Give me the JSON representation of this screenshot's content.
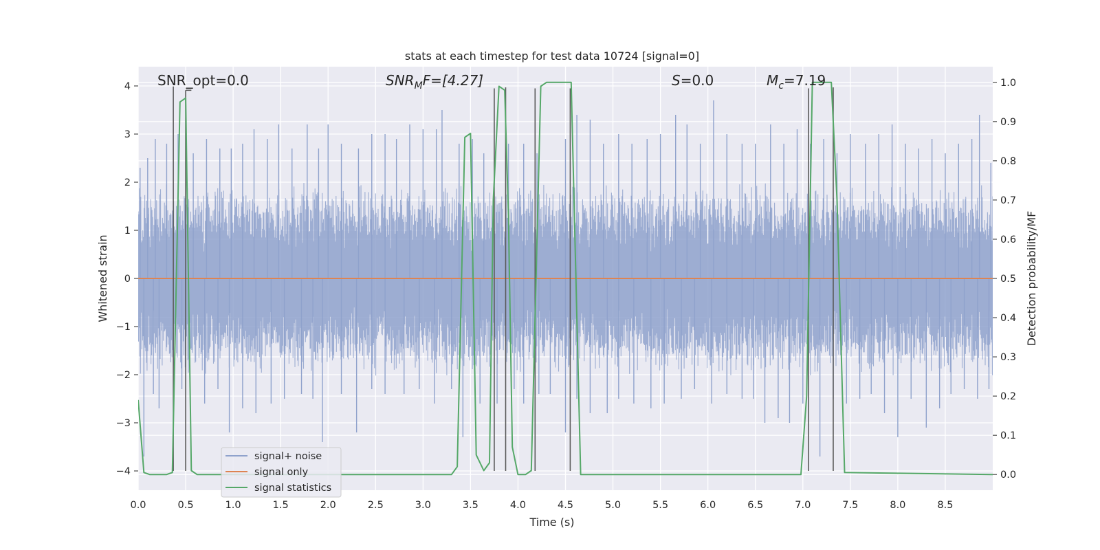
{
  "chart_data": {
    "type": "line",
    "title": "stats at each timestep for test data 10724 [signal=0]",
    "xlabel": "Time (s)",
    "ylabel_left": "Whitened strain",
    "ylabel_right": "Detection probability/MF",
    "xlim": [
      0.0,
      9.0
    ],
    "ylim_left": [
      -4.4,
      4.4
    ],
    "ylim_right": [
      -0.04,
      1.04
    ],
    "x_ticks": [
      "0.0",
      "0.5",
      "1.0",
      "1.5",
      "2.0",
      "2.5",
      "3.0",
      "3.5",
      "4.0",
      "4.5",
      "5.0",
      "5.5",
      "6.0",
      "6.5",
      "7.0",
      "7.5",
      "8.0",
      "8.5"
    ],
    "y_ticks_left": [
      "4",
      "3",
      "2",
      "1",
      "0",
      "−1",
      "−2",
      "−3",
      "−4"
    ],
    "y_ticks_right": [
      "1.0",
      "0.9",
      "0.8",
      "0.7",
      "0.6",
      "0.5",
      "0.4",
      "0.3",
      "0.2",
      "0.1",
      "0.0"
    ],
    "grid": true,
    "legend_position": "lower left",
    "annotations": {
      "snr_opt": "SNR_opt=0.0",
      "snr_mf_main": "SNR",
      "snr_mf_sub": "M",
      "snr_mf_rest": "F=[4.27]",
      "s_main": "S",
      "s_rest": "=0.0",
      "mc_main": "M",
      "mc_sub": "c",
      "mc_rest": "=7.19"
    },
    "series": [
      {
        "name": "signal+ noise",
        "color": "#8fa2cc",
        "note_levels": "dense noise, bulk envelope approx ±1.5, spikes up to ±3.8",
        "envelope_upper": 1.55,
        "envelope_lower": -1.6,
        "peaks": [
          {
            "x": 0.02,
            "y": 2.3
          },
          {
            "x": 0.1,
            "y": 2.5
          },
          {
            "x": 0.18,
            "y": 2.9
          },
          {
            "x": 0.3,
            "y": 2.8
          },
          {
            "x": 0.42,
            "y": 3.0
          },
          {
            "x": 0.58,
            "y": 2.6
          },
          {
            "x": 0.72,
            "y": 2.9
          },
          {
            "x": 0.86,
            "y": 2.7
          },
          {
            "x": 0.98,
            "y": 2.7
          },
          {
            "x": 1.1,
            "y": 2.8
          },
          {
            "x": 1.22,
            "y": 3.1
          },
          {
            "x": 1.36,
            "y": 2.9
          },
          {
            "x": 1.48,
            "y": 3.2
          },
          {
            "x": 1.62,
            "y": 2.7
          },
          {
            "x": 1.78,
            "y": 3.2
          },
          {
            "x": 1.9,
            "y": 2.7
          },
          {
            "x": 2.0,
            "y": 3.2
          },
          {
            "x": 2.14,
            "y": 2.8
          },
          {
            "x": 2.32,
            "y": 2.7
          },
          {
            "x": 2.46,
            "y": 3.0
          },
          {
            "x": 2.6,
            "y": 3.0
          },
          {
            "x": 2.72,
            "y": 2.9
          },
          {
            "x": 2.86,
            "y": 3.2
          },
          {
            "x": 3.0,
            "y": 3.1
          },
          {
            "x": 3.14,
            "y": 3.1
          },
          {
            "x": 3.2,
            "y": 3.5
          },
          {
            "x": 3.38,
            "y": 2.8
          },
          {
            "x": 3.52,
            "y": 2.9
          },
          {
            "x": 3.64,
            "y": 2.6
          },
          {
            "x": 3.9,
            "y": 2.8
          },
          {
            "x": 4.06,
            "y": 2.8
          },
          {
            "x": 4.2,
            "y": 2.6
          },
          {
            "x": 4.5,
            "y": 2.9
          },
          {
            "x": 4.62,
            "y": 3.4
          },
          {
            "x": 4.76,
            "y": 3.3
          },
          {
            "x": 4.9,
            "y": 2.8
          },
          {
            "x": 5.06,
            "y": 3.0
          },
          {
            "x": 5.2,
            "y": 2.8
          },
          {
            "x": 5.36,
            "y": 2.9
          },
          {
            "x": 5.5,
            "y": 3.0
          },
          {
            "x": 5.66,
            "y": 3.4
          },
          {
            "x": 5.78,
            "y": 3.2
          },
          {
            "x": 5.92,
            "y": 2.8
          },
          {
            "x": 6.06,
            "y": 3.7
          },
          {
            "x": 6.2,
            "y": 3.0
          },
          {
            "x": 6.36,
            "y": 2.8
          },
          {
            "x": 6.5,
            "y": 2.8
          },
          {
            "x": 6.66,
            "y": 3.2
          },
          {
            "x": 6.8,
            "y": 2.8
          },
          {
            "x": 6.94,
            "y": 3.1
          },
          {
            "x": 7.08,
            "y": 2.8
          },
          {
            "x": 7.22,
            "y": 2.9
          },
          {
            "x": 7.36,
            "y": 2.6
          },
          {
            "x": 7.5,
            "y": 3.0
          },
          {
            "x": 7.66,
            "y": 2.8
          },
          {
            "x": 7.8,
            "y": 3.0
          },
          {
            "x": 7.94,
            "y": 3.2
          },
          {
            "x": 8.08,
            "y": 2.8
          },
          {
            "x": 8.22,
            "y": 2.7
          },
          {
            "x": 8.36,
            "y": 2.9
          },
          {
            "x": 8.5,
            "y": 2.6
          },
          {
            "x": 8.64,
            "y": 2.8
          },
          {
            "x": 8.78,
            "y": 2.9
          },
          {
            "x": 8.86,
            "y": 3.4
          },
          {
            "x": 8.98,
            "y": 2.4
          }
        ],
        "troughs": [
          {
            "x": 0.06,
            "y": -3.7
          },
          {
            "x": 0.16,
            "y": -2.4
          },
          {
            "x": 0.22,
            "y": -2.7
          },
          {
            "x": 0.46,
            "y": -2.3
          },
          {
            "x": 0.7,
            "y": -2.6
          },
          {
            "x": 0.84,
            "y": -2.3
          },
          {
            "x": 0.96,
            "y": -3.2
          },
          {
            "x": 1.1,
            "y": -2.7
          },
          {
            "x": 1.24,
            "y": -2.8
          },
          {
            "x": 1.4,
            "y": -2.6
          },
          {
            "x": 1.54,
            "y": -2.5
          },
          {
            "x": 1.72,
            "y": -2.4
          },
          {
            "x": 1.84,
            "y": -2.5
          },
          {
            "x": 1.94,
            "y": -3.4
          },
          {
            "x": 2.14,
            "y": -2.4
          },
          {
            "x": 2.3,
            "y": -3.2
          },
          {
            "x": 2.46,
            "y": -2.3
          },
          {
            "x": 2.6,
            "y": -2.4
          },
          {
            "x": 2.8,
            "y": -2.4
          },
          {
            "x": 2.96,
            "y": -2.3
          },
          {
            "x": 3.12,
            "y": -2.6
          },
          {
            "x": 3.3,
            "y": -2.3
          },
          {
            "x": 3.42,
            "y": -3.3
          },
          {
            "x": 3.6,
            "y": -2.6
          },
          {
            "x": 3.78,
            "y": -2.6
          },
          {
            "x": 3.96,
            "y": -2.3
          },
          {
            "x": 4.06,
            "y": -2.6
          },
          {
            "x": 4.22,
            "y": -2.4
          },
          {
            "x": 4.34,
            "y": -2.4
          },
          {
            "x": 4.5,
            "y": -3.2
          },
          {
            "x": 4.62,
            "y": -2.5
          },
          {
            "x": 4.76,
            "y": -2.8
          },
          {
            "x": 4.94,
            "y": -2.8
          },
          {
            "x": 5.06,
            "y": -2.5
          },
          {
            "x": 5.22,
            "y": -2.6
          },
          {
            "x": 5.4,
            "y": -2.7
          },
          {
            "x": 5.54,
            "y": -2.6
          },
          {
            "x": 5.72,
            "y": -2.5
          },
          {
            "x": 5.86,
            "y": -2.3
          },
          {
            "x": 6.04,
            "y": -2.6
          },
          {
            "x": 6.2,
            "y": -2.4
          },
          {
            "x": 6.36,
            "y": -2.5
          },
          {
            "x": 6.48,
            "y": -2.5
          },
          {
            "x": 6.6,
            "y": -3.0
          },
          {
            "x": 6.74,
            "y": -2.9
          },
          {
            "x": 6.86,
            "y": -3.0
          },
          {
            "x": 7.0,
            "y": -2.6
          },
          {
            "x": 7.18,
            "y": -3.7
          },
          {
            "x": 7.32,
            "y": -2.5
          },
          {
            "x": 7.46,
            "y": -2.6
          },
          {
            "x": 7.6,
            "y": -2.5
          },
          {
            "x": 7.72,
            "y": -2.4
          },
          {
            "x": 7.86,
            "y": -2.8
          },
          {
            "x": 8.0,
            "y": -3.3
          },
          {
            "x": 8.14,
            "y": -2.5
          },
          {
            "x": 8.3,
            "y": -3.1
          },
          {
            "x": 8.44,
            "y": -2.7
          },
          {
            "x": 8.56,
            "y": -2.4
          },
          {
            "x": 8.7,
            "y": -2.3
          },
          {
            "x": 8.84,
            "y": -2.5
          },
          {
            "x": 8.96,
            "y": -2.3
          }
        ]
      },
      {
        "name": "signal only",
        "color": "#dd8452",
        "x": [
          0.0,
          9.0
        ],
        "y": [
          0.0,
          0.0
        ]
      },
      {
        "name": "signal statistics",
        "color": "#55a868",
        "axis": "right",
        "x": [
          0.0,
          0.06,
          0.12,
          0.3,
          0.36,
          0.44,
          0.5,
          0.56,
          0.62,
          3.3,
          3.36,
          3.44,
          3.5,
          3.56,
          3.64,
          3.7,
          3.74,
          3.8,
          3.86,
          3.9,
          3.94,
          4.0,
          4.08,
          4.14,
          4.24,
          4.3,
          4.56,
          4.6,
          4.66,
          6.98,
          7.04,
          7.1,
          7.3,
          7.36,
          7.44,
          9.0
        ],
        "y": [
          0.19,
          0.005,
          0.0,
          0.0,
          0.005,
          0.95,
          0.96,
          0.01,
          0.0,
          0.0,
          0.02,
          0.86,
          0.87,
          0.05,
          0.01,
          0.03,
          0.7,
          0.99,
          0.98,
          0.66,
          0.07,
          0.0,
          0.0,
          0.01,
          0.99,
          1.0,
          1.0,
          0.6,
          0.0,
          0.0,
          0.2,
          1.0,
          1.0,
          0.7,
          0.005,
          0.0
        ]
      }
    ],
    "vertical_markers": {
      "color": "#5a5a5a",
      "x": [
        0.37,
        0.5,
        3.75,
        3.87,
        4.18,
        4.55,
        7.06,
        7.32
      ],
      "y_top": [
        3.99,
        3.91,
        3.95,
        3.97,
        3.95,
        3.95,
        3.95,
        3.97
      ]
    },
    "marker_connector": {
      "x": [
        0.5,
        0.56
      ],
      "y": 3.91
    }
  }
}
